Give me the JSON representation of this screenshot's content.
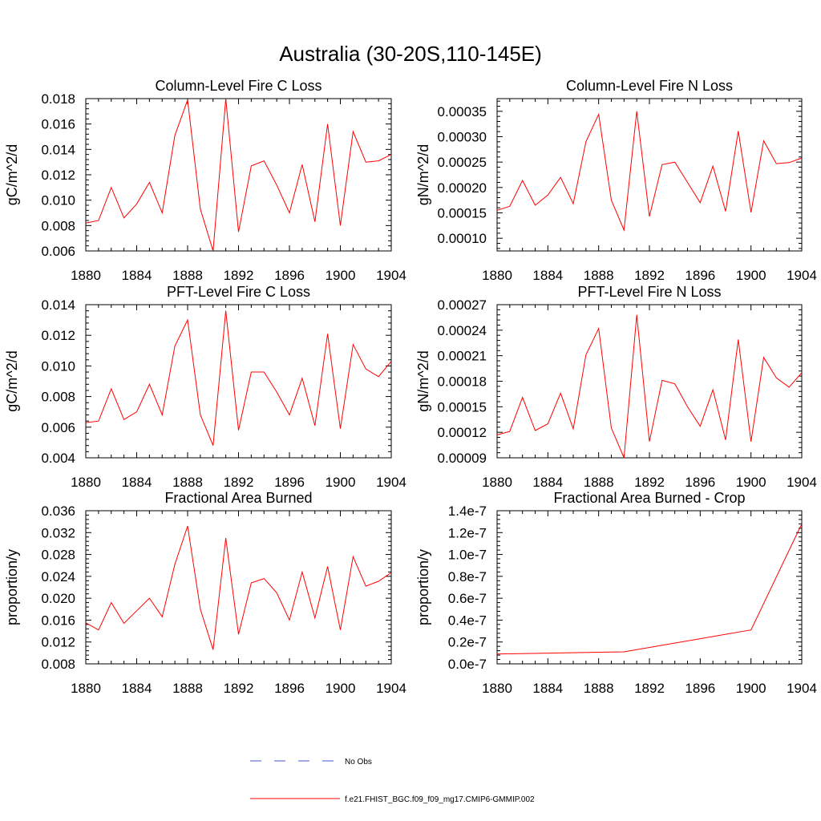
{
  "title": "Australia (30-20S,110-145E)",
  "legend": [
    {
      "label": "No Obs",
      "color": "#4455cc",
      "dash": true
    },
    {
      "label": "f.e21.FHIST_BGC.f09_f09_mg17.CMIP6-GMMIP.002",
      "color": "#ff0000",
      "dash": false
    }
  ],
  "colors": {
    "line": "#ff0000",
    "obs": "#4455cc",
    "axis": "#000000"
  },
  "chart_data": [
    {
      "type": "line",
      "title": "Column-Level Fire C Loss",
      "ylabel": "gC/m^2/d",
      "xlim": [
        1880,
        1904
      ],
      "xticks": [
        "1880",
        "1884",
        "1888",
        "1892",
        "1896",
        "1900",
        "1904"
      ],
      "ylim": [
        0.006,
        0.018
      ],
      "yticks": [
        "0.006",
        "0.008",
        "0.010",
        "0.012",
        "0.014",
        "0.016",
        "0.018"
      ],
      "series": [
        {
          "x": [
            1880,
            1881,
            1882,
            1883,
            1884,
            1885,
            1886,
            1887,
            1888,
            1889,
            1890,
            1891,
            1892,
            1893,
            1894,
            1895,
            1896,
            1897,
            1898,
            1899,
            1900,
            1901,
            1902,
            1903,
            1904
          ],
          "values": [
            0.0082,
            0.0084,
            0.011,
            0.0086,
            0.0097,
            0.0114,
            0.009,
            0.0151,
            0.0179,
            0.0093,
            0.006,
            0.018,
            0.0075,
            0.0127,
            0.0131,
            0.0112,
            0.009,
            0.0128,
            0.0083,
            0.016,
            0.008,
            0.0154,
            0.013,
            0.0131,
            0.0136
          ]
        }
      ]
    },
    {
      "type": "line",
      "title": "Column-Level Fire N Loss",
      "ylabel": "gN/m^2/d",
      "xlim": [
        1880,
        1904
      ],
      "xticks": [
        "1880",
        "1884",
        "1888",
        "1892",
        "1896",
        "1900",
        "1904"
      ],
      "ylim": [
        7.5e-05,
        0.000375
      ],
      "yticks": [
        "0.00010",
        "0.00015",
        "0.00020",
        "0.00025",
        "0.00030",
        "0.00035"
      ],
      "ytick_values": [
        0.0001,
        0.00015,
        0.0002,
        0.00025,
        0.0003,
        0.00035
      ],
      "series": [
        {
          "x": [
            1880,
            1881,
            1882,
            1883,
            1884,
            1885,
            1886,
            1887,
            1888,
            1889,
            1890,
            1891,
            1892,
            1893,
            1894,
            1895,
            1896,
            1897,
            1898,
            1899,
            1900,
            1901,
            1902,
            1903,
            1904
          ],
          "values": [
            0.000155,
            0.000163,
            0.000214,
            0.000165,
            0.000185,
            0.00022,
            0.000168,
            0.00029,
            0.000344,
            0.000175,
            0.000116,
            0.00035,
            0.000143,
            0.000245,
            0.00025,
            0.00021,
            0.00017,
            0.000242,
            0.000153,
            0.000311,
            0.000151,
            0.000292,
            0.000247,
            0.000249,
            0.000258
          ]
        }
      ]
    },
    {
      "type": "line",
      "title": "PFT-Level Fire C Loss",
      "ylabel": "gC/m^2/d",
      "xlim": [
        1880,
        1904
      ],
      "xticks": [
        "1880",
        "1884",
        "1888",
        "1892",
        "1896",
        "1900",
        "1904"
      ],
      "ylim": [
        0.004,
        0.014
      ],
      "yticks": [
        "0.004",
        "0.006",
        "0.008",
        "0.010",
        "0.012",
        "0.014"
      ],
      "series": [
        {
          "x": [
            1880,
            1881,
            1882,
            1883,
            1884,
            1885,
            1886,
            1887,
            1888,
            1889,
            1890,
            1891,
            1892,
            1893,
            1894,
            1895,
            1896,
            1897,
            1898,
            1899,
            1900,
            1901,
            1902,
            1903,
            1904
          ],
          "values": [
            0.0063,
            0.0064,
            0.0085,
            0.0065,
            0.007,
            0.0088,
            0.0068,
            0.0113,
            0.013,
            0.0068,
            0.0048,
            0.0136,
            0.0058,
            0.0096,
            0.0096,
            0.0083,
            0.0068,
            0.0092,
            0.0061,
            0.0121,
            0.0059,
            0.0114,
            0.0098,
            0.0093,
            0.0103
          ]
        }
      ]
    },
    {
      "type": "line",
      "title": "PFT-Level Fire N Loss",
      "ylabel": "gN/m^2/d",
      "xlim": [
        1880,
        1904
      ],
      "xticks": [
        "1880",
        "1884",
        "1888",
        "1892",
        "1896",
        "1900",
        "1904"
      ],
      "ylim": [
        9e-05,
        0.00027
      ],
      "yticks": [
        "0.00009",
        "0.00012",
        "0.00015",
        "0.00018",
        "0.00021",
        "0.00024",
        "0.00027"
      ],
      "series": [
        {
          "x": [
            1880,
            1881,
            1882,
            1883,
            1884,
            1885,
            1886,
            1887,
            1888,
            1889,
            1890,
            1891,
            1892,
            1893,
            1894,
            1895,
            1896,
            1897,
            1898,
            1899,
            1900,
            1901,
            1902,
            1903,
            1904
          ],
          "values": [
            0.000117,
            0.000121,
            0.000161,
            0.000122,
            0.00013,
            0.000166,
            0.000124,
            0.000211,
            0.000242,
            0.000125,
            9e-05,
            0.000258,
            0.000109,
            0.000181,
            0.000177,
            0.00015,
            0.000127,
            0.00017,
            0.000111,
            0.000229,
            0.000109,
            0.000208,
            0.000184,
            0.000173,
            0.00019
          ]
        }
      ]
    },
    {
      "type": "line",
      "title": "Fractional Area Burned",
      "ylabel": "proportion/y",
      "xlim": [
        1880,
        1904
      ],
      "xticks": [
        "1880",
        "1884",
        "1888",
        "1892",
        "1896",
        "1900",
        "1904"
      ],
      "ylim": [
        0.008,
        0.036
      ],
      "yticks": [
        "0.008",
        "0.012",
        "0.016",
        "0.020",
        "0.024",
        "0.028",
        "0.032",
        "0.036"
      ],
      "series": [
        {
          "x": [
            1880,
            1881,
            1882,
            1883,
            1884,
            1885,
            1886,
            1887,
            1888,
            1889,
            1890,
            1891,
            1892,
            1893,
            1894,
            1895,
            1896,
            1897,
            1898,
            1899,
            1900,
            1901,
            1902,
            1903,
            1904
          ],
          "values": [
            0.0155,
            0.0142,
            0.0192,
            0.0154,
            0.0177,
            0.02,
            0.0166,
            0.0262,
            0.0332,
            0.018,
            0.0106,
            0.031,
            0.0134,
            0.0228,
            0.0236,
            0.021,
            0.016,
            0.0248,
            0.0164,
            0.0258,
            0.0142,
            0.0276,
            0.0222,
            0.0231,
            0.0247
          ]
        }
      ]
    },
    {
      "type": "line",
      "title": "Fractional Area Burned - Crop",
      "ylabel": "proportion/y",
      "xlim": [
        1880,
        1904
      ],
      "xticks": [
        "1880",
        "1884",
        "1888",
        "1892",
        "1896",
        "1900",
        "1904"
      ],
      "ylim": [
        0,
        1.4e-07
      ],
      "yticks": [
        "0.0e-7",
        "0.2e-7",
        "0.4e-7",
        "0.6e-7",
        "0.8e-7",
        "1.0e-7",
        "1.2e-7",
        "1.4e-7"
      ],
      "series": [
        {
          "x": [
            1880,
            1890,
            1900,
            1904
          ],
          "values": [
            9e-09,
            1.1e-08,
            3.1e-08,
            1.28e-07
          ]
        }
      ]
    }
  ]
}
